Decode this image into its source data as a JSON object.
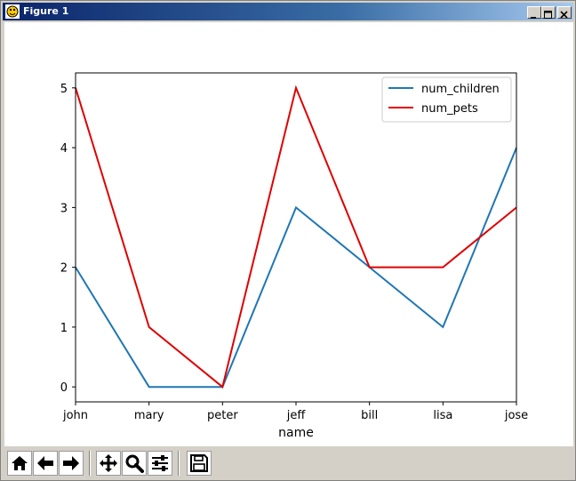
{
  "window": {
    "title": "Figure 1",
    "controls": [
      "minimize",
      "maximize",
      "close"
    ]
  },
  "toolbar": {
    "buttons": [
      {
        "name": "home",
        "icon": "home-icon"
      },
      {
        "name": "back",
        "icon": "arrow-left-icon"
      },
      {
        "name": "forward",
        "icon": "arrow-right-icon"
      },
      {
        "name": "pan",
        "icon": "move-icon"
      },
      {
        "name": "zoom",
        "icon": "magnifier-icon"
      },
      {
        "name": "configure-subplots",
        "icon": "sliders-icon"
      },
      {
        "name": "save",
        "icon": "floppy-disk-icon"
      }
    ]
  },
  "chart_data": {
    "type": "line",
    "categories": [
      "john",
      "mary",
      "peter",
      "jeff",
      "bill",
      "lisa",
      "jose"
    ],
    "series": [
      {
        "name": "num_children",
        "values": [
          2,
          0,
          0,
          3,
          2,
          1,
          4
        ],
        "color": "#1f77b4"
      },
      {
        "name": "num_pets",
        "values": [
          5,
          1,
          0,
          5,
          2,
          2,
          3
        ],
        "color": "#e00000"
      }
    ],
    "title": "",
    "xlabel": "name",
    "ylabel": "",
    "ylim": [
      -0.25,
      5.25
    ],
    "yticks": [
      0,
      1,
      2,
      3,
      4,
      5
    ],
    "grid": false,
    "legend_position": "top-right"
  }
}
